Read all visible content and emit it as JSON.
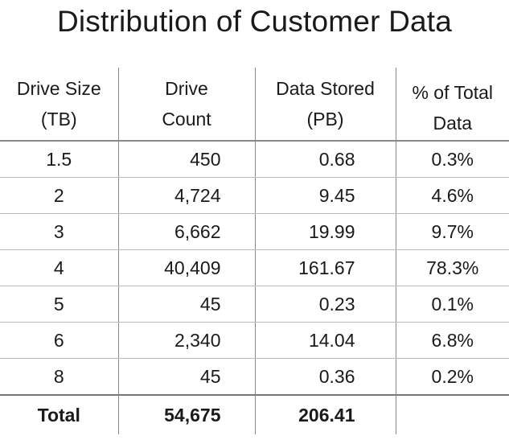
{
  "title": "Distribution of Customer Data",
  "table": {
    "headers": [
      [
        "Drive Size",
        "(TB)"
      ],
      [
        "Drive",
        "Count"
      ],
      [
        "Data Stored",
        "(PB)"
      ],
      [
        "% of Total",
        "Data"
      ]
    ],
    "rows": [
      [
        "1.5",
        "450",
        "0.68",
        "0.3%"
      ],
      [
        "2",
        "4,724",
        "9.45",
        "4.6%"
      ],
      [
        "3",
        "6,662",
        "19.99",
        "9.7%"
      ],
      [
        "4",
        "40,409",
        "161.67",
        "78.3%"
      ],
      [
        "5",
        "45",
        "0.23",
        "0.1%"
      ],
      [
        "6",
        "2,340",
        "14.04",
        "6.8%"
      ],
      [
        "8",
        "45",
        "0.36",
        "0.2%"
      ]
    ],
    "total": [
      "Total",
      "54,675",
      "206.41",
      ""
    ]
  },
  "chart_data": {
    "type": "table",
    "title": "Distribution of Customer Data",
    "columns": [
      "Drive Size (TB)",
      "Drive Count",
      "Data Stored (PB)",
      "% of Total Data"
    ],
    "rows": [
      [
        1.5,
        450,
        0.68,
        0.3
      ],
      [
        2,
        4724,
        9.45,
        4.6
      ],
      [
        3,
        6662,
        19.99,
        9.7
      ],
      [
        4,
        40409,
        161.67,
        78.3
      ],
      [
        5,
        45,
        0.23,
        0.1
      ],
      [
        6,
        2340,
        14.04,
        6.8
      ],
      [
        8,
        45,
        0.36,
        0.2
      ]
    ],
    "total": {
      "drive_count": 54675,
      "data_stored_pb": 206.41
    }
  }
}
